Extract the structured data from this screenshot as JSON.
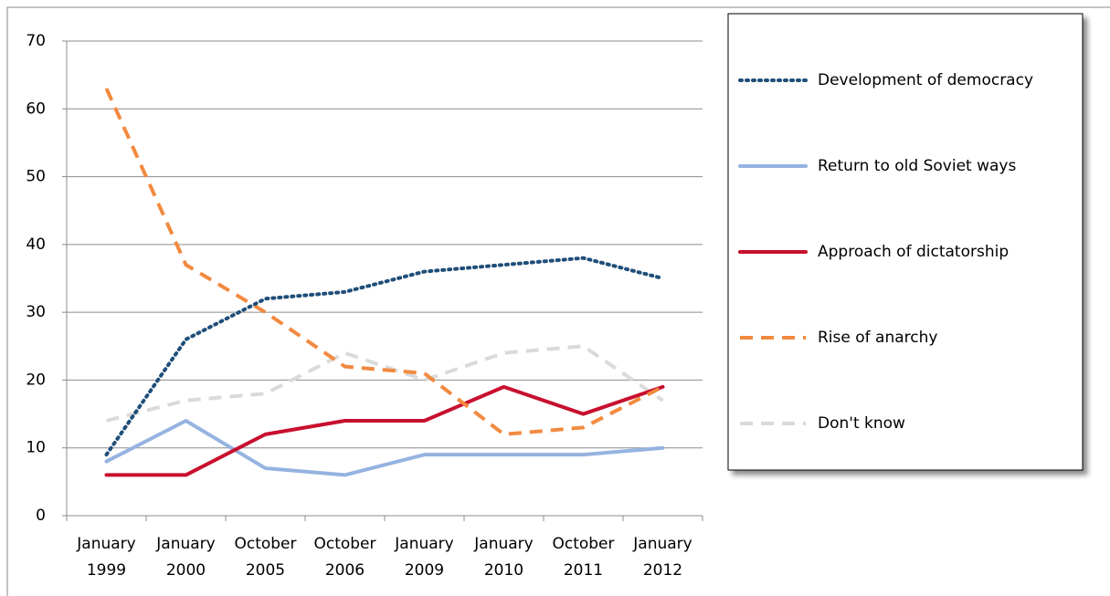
{
  "chart_data": {
    "type": "line",
    "categories": [
      "January 1999",
      "January 2000",
      "October 2005",
      "October 2006",
      "January 2009",
      "January 2010",
      "October 2011",
      "January 2012"
    ],
    "series": [
      {
        "name": "Development of democracy",
        "color": "#1f4e79",
        "dash": "dotted",
        "values": [
          9,
          26,
          32,
          33,
          36,
          37,
          38,
          35
        ]
      },
      {
        "name": "Return to old Soviet ways",
        "color": "#95b3e0",
        "dash": "solid",
        "values": [
          8,
          14,
          7,
          6,
          9,
          9,
          9,
          10
        ]
      },
      {
        "name": "Approach of dictatorship",
        "color": "#c8102e",
        "dash": "solid",
        "values": [
          6,
          6,
          12,
          14,
          14,
          19,
          15,
          19
        ]
      },
      {
        "name": "Rise of anarchy",
        "color": "#f28a40",
        "dash": "dashed",
        "values": [
          63,
          37,
          30,
          22,
          21,
          12,
          13,
          19
        ]
      },
      {
        "name": "Don't know",
        "color": "#dadada",
        "dash": "dashed",
        "values": [
          14,
          17,
          18,
          24,
          20,
          24,
          25,
          17
        ]
      }
    ],
    "ylim": [
      0,
      70
    ],
    "yticks": [
      0,
      10,
      20,
      30,
      40,
      50,
      60,
      70
    ],
    "grid": true,
    "legend": "right"
  }
}
